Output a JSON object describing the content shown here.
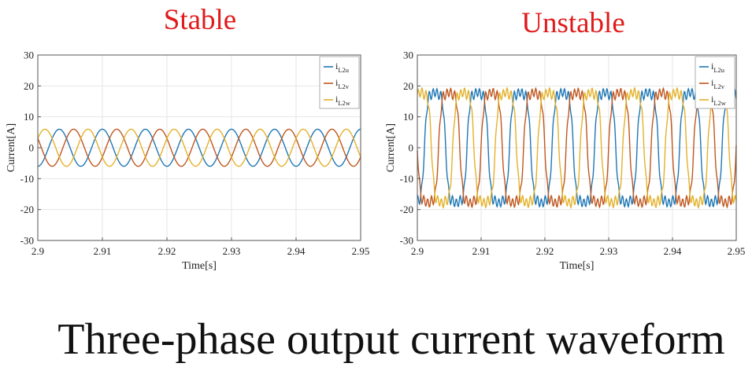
{
  "caption": "Three-phase output current waveform",
  "colors": {
    "title": "#e01b1b",
    "u": "#1f77b4",
    "v": "#c0571f",
    "w": "#e3b12a",
    "grid": "#e6e6e6",
    "axis": "#555555"
  },
  "chart_data": [
    {
      "type": "line",
      "title": "Stable",
      "xlabel": "Time[s]",
      "ylabel": "Current[A]",
      "xlim": [
        2.9,
        2.95
      ],
      "ylim": [
        -30,
        30
      ],
      "xticks": [
        "2.9",
        "2.91",
        "2.92",
        "2.93",
        "2.94",
        "2.95"
      ],
      "yticks": [
        "30",
        "20",
        "10",
        "0",
        "-10",
        "-20",
        "-30"
      ],
      "grid": true,
      "legend_position": "top-right",
      "waveform": {
        "amplitude": 6,
        "frequency_hz": 150,
        "phase_offsets_deg": [
          -90,
          150,
          30
        ],
        "distortion": false
      },
      "series": [
        {
          "name": "i",
          "sub": "L2u",
          "color_key": "u"
        },
        {
          "name": "i",
          "sub": "L2v",
          "color_key": "v"
        },
        {
          "name": "i",
          "sub": "L2w",
          "color_key": "w"
        }
      ]
    },
    {
      "type": "line",
      "title": "Unstable",
      "xlabel": "Time[s]",
      "ylabel": "Current[A]",
      "xlim": [
        2.9,
        2.95
      ],
      "ylim": [
        -30,
        30
      ],
      "xticks": [
        "2.9",
        "2.91",
        "2.92",
        "2.93",
        "2.94",
        "2.95"
      ],
      "yticks": [
        "30",
        "20",
        "10",
        "0",
        "-10",
        "-20",
        "-30"
      ],
      "grid": true,
      "legend_position": "top-right",
      "waveform": {
        "amplitude": 21,
        "frequency_hz": 150,
        "phase_offsets_deg": [
          -60,
          180,
          60
        ],
        "distortion": true
      },
      "series": [
        {
          "name": "i",
          "sub": "L2u",
          "color_key": "u"
        },
        {
          "name": "i",
          "sub": "L2v",
          "color_key": "v"
        },
        {
          "name": "i",
          "sub": "L2w",
          "color_key": "w"
        }
      ]
    }
  ]
}
